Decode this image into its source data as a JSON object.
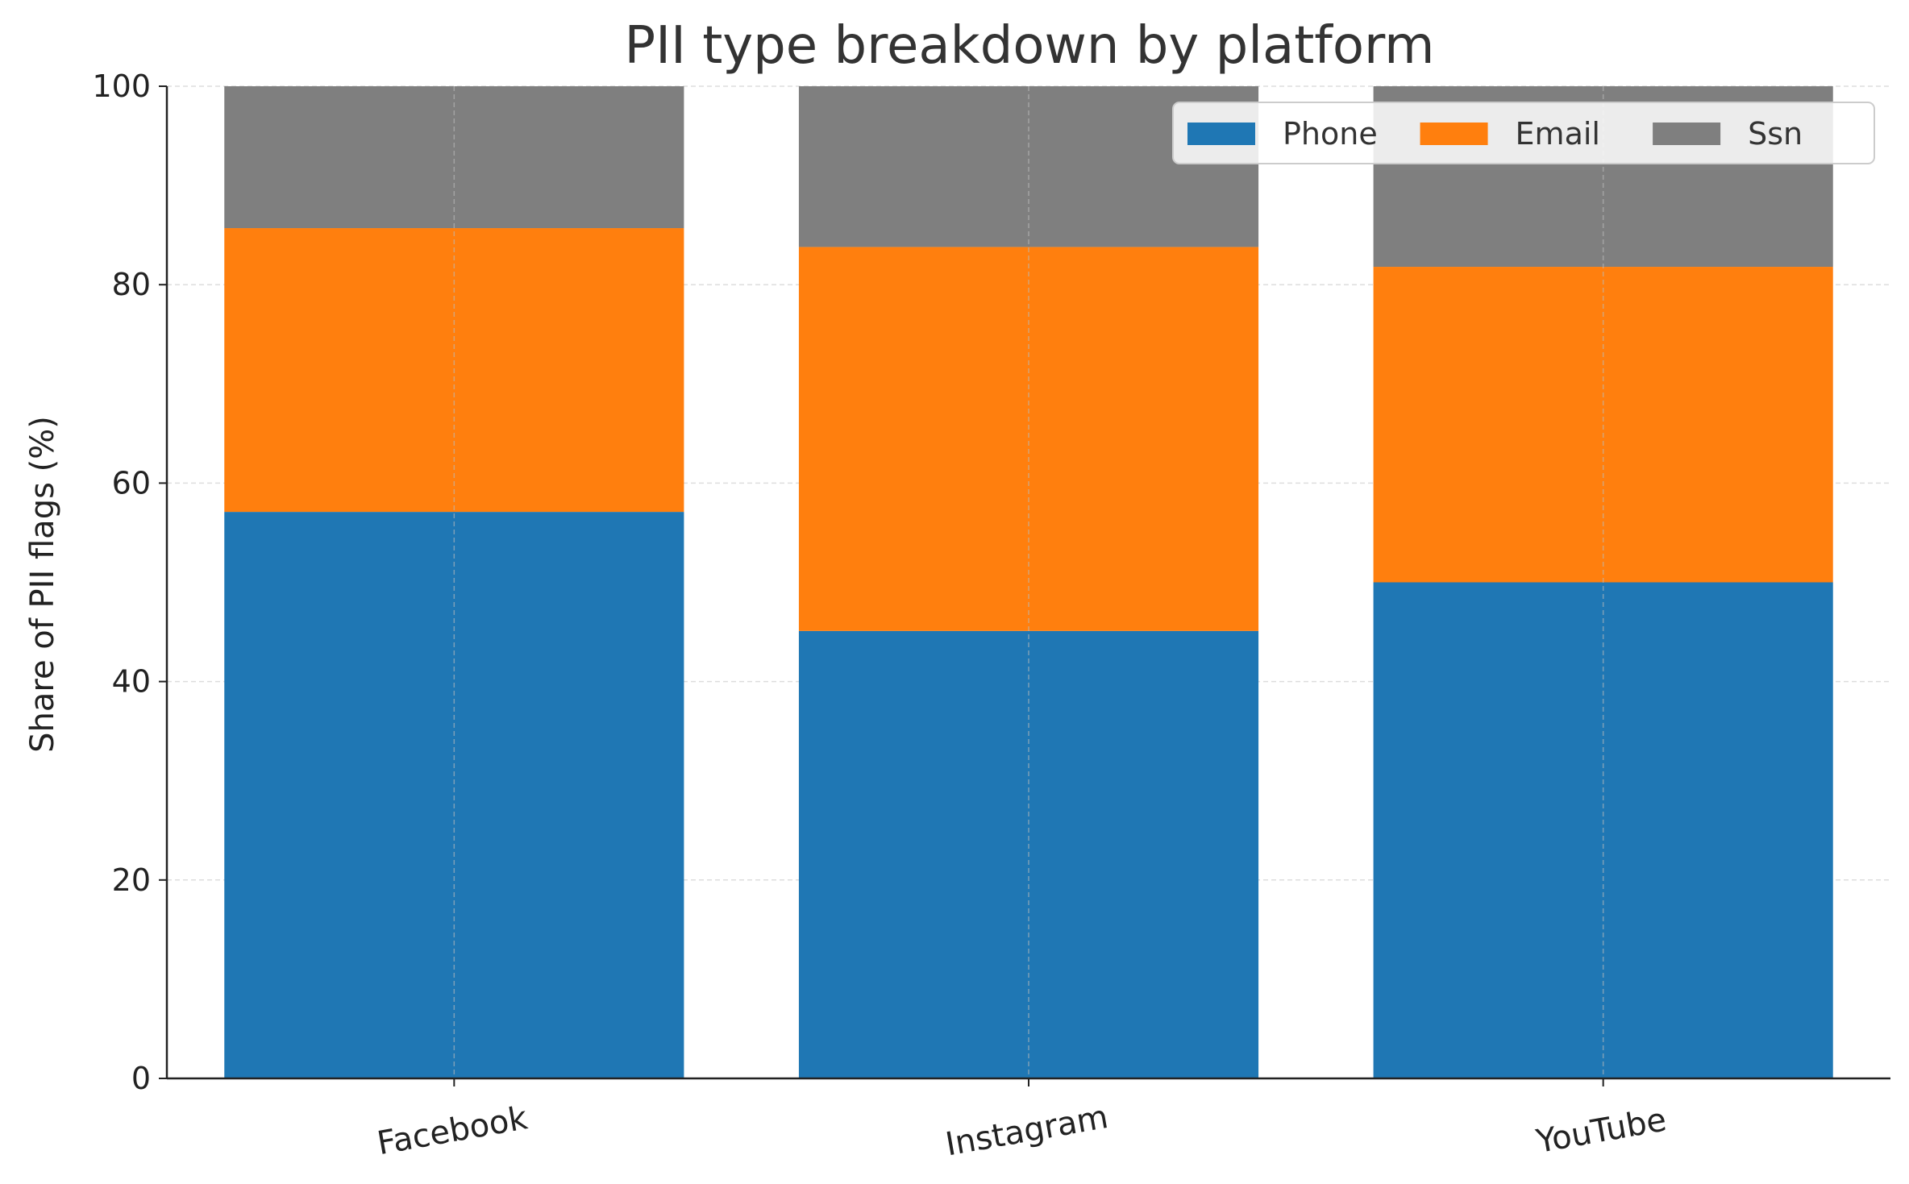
{
  "chart_data": {
    "type": "bar",
    "stacked": true,
    "title": "PII type breakdown by platform",
    "xlabel": "",
    "ylabel": "Share of PII flags (%)",
    "categories": [
      "Facebook",
      "Instagram",
      "YouTube"
    ],
    "series": [
      {
        "name": "Phone",
        "color": "#1f77b4",
        "values": [
          57.1,
          45.1,
          50.0
        ]
      },
      {
        "name": "Email",
        "color": "#ff7f0e",
        "values": [
          28.6,
          38.7,
          31.8
        ]
      },
      {
        "name": "Ssn",
        "color": "#7f7f7f",
        "values": [
          14.3,
          16.2,
          18.2
        ]
      }
    ],
    "ylim": [
      0,
      100
    ],
    "yticks": [
      "0",
      "20",
      "40",
      "60",
      "80",
      "100"
    ],
    "grid": true,
    "legend_position": "top-right"
  }
}
